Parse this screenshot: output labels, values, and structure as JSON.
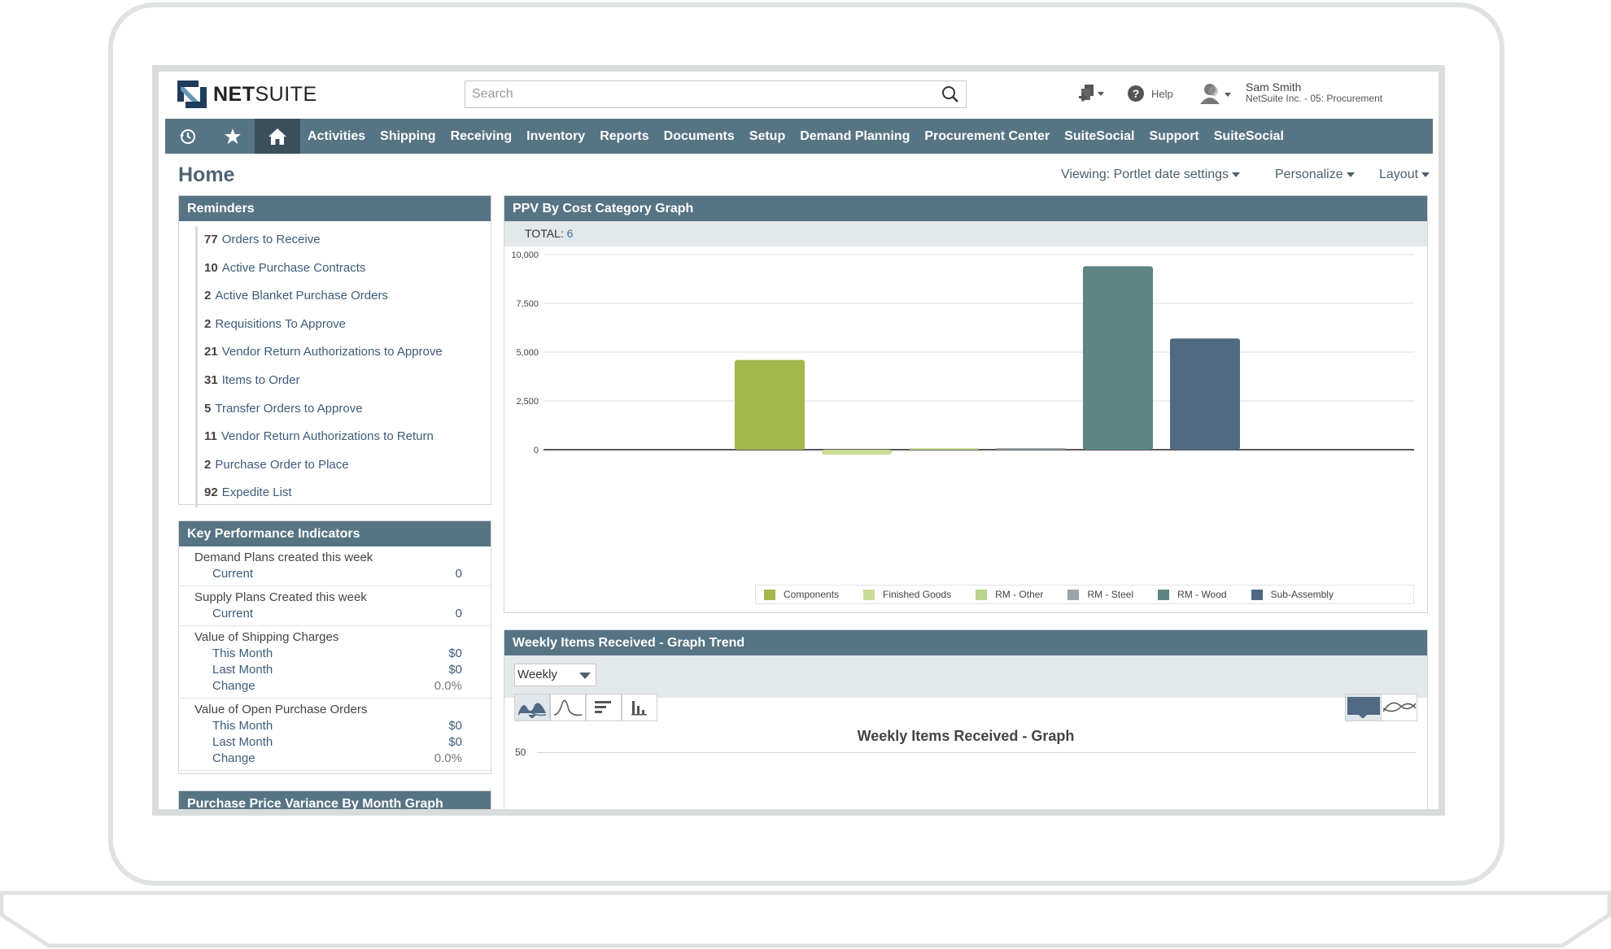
{
  "header": {
    "logo_text_bold": "NET",
    "logo_text_light": "SUITE",
    "search_placeholder": "Search",
    "help_label": "Help",
    "user_name": "Sam Smith",
    "user_role": "NetSuite Inc. - 05: Procurement"
  },
  "nav": {
    "items": [
      "Activities",
      "Shipping",
      "Receiving",
      "Inventory",
      "Reports",
      "Documents",
      "Setup",
      "Demand Planning",
      "Procurement Center",
      "SuiteSocial",
      "Support",
      "SuiteSocial"
    ]
  },
  "page": {
    "title": "Home",
    "viewing": "Viewing: Portlet date settings",
    "personalize": "Personalize",
    "layout": "Layout"
  },
  "reminders": {
    "title": "Reminders",
    "items": [
      {
        "count": "77",
        "label": "Orders to Receive"
      },
      {
        "count": "10",
        "label": "Active Purchase Contracts"
      },
      {
        "count": "2",
        "label": "Active Blanket Purchase Orders"
      },
      {
        "count": "2",
        "label": "Requisitions To Approve"
      },
      {
        "count": "21",
        "label": "Vendor Return Authorizations to Approve"
      },
      {
        "count": "31",
        "label": "Items to Order"
      },
      {
        "count": "5",
        "label": "Transfer Orders to Approve"
      },
      {
        "count": "11",
        "label": "Vendor Return Authorizations to Return"
      },
      {
        "count": "2",
        "label": "Purchase Order to Place"
      },
      {
        "count": "92",
        "label": "Expedite List"
      }
    ]
  },
  "kpi": {
    "title": "Key Performance Indicators",
    "groups": [
      {
        "title": "Demand Plans created this week",
        "rows": [
          {
            "label": "Current",
            "value": "0"
          }
        ]
      },
      {
        "title": "Supply Plans Created this week",
        "rows": [
          {
            "label": "Current",
            "value": "0"
          }
        ]
      },
      {
        "title": "Value of Shipping Charges",
        "rows": [
          {
            "label": "This Month",
            "value": "$0"
          },
          {
            "label": "Last Month",
            "value": "$0"
          },
          {
            "label": "Change",
            "value": "0.0%"
          }
        ]
      },
      {
        "title": "Value of Open Purchase Orders",
        "rows": [
          {
            "label": "This Month",
            "value": "$0"
          },
          {
            "label": "Last Month",
            "value": "$0"
          },
          {
            "label": "Change",
            "value": "0.0%"
          }
        ]
      }
    ]
  },
  "ppv_month": {
    "title": "Purchase Price Variance By Month Graph"
  },
  "ppv_graph": {
    "title": "PPV By Cost Category Graph",
    "total_label": "TOTAL:",
    "total_value": "6"
  },
  "chart_data": {
    "type": "bar",
    "categories": [
      "Components",
      "Finished Goods",
      "RM - Other",
      "RM - Steel",
      "RM - Wood",
      "Sub-Assembly"
    ],
    "values": [
      4600,
      -250,
      50,
      50,
      9400,
      5700
    ],
    "colors": [
      "#a3b74d",
      "#c9dc96",
      "#c9dc96",
      "#9ba5aa",
      "#5f8583",
      "#4f6a82"
    ],
    "legend_colors": [
      "#a3b74d",
      "#c9dc96",
      "#b9d48f",
      "#9ba5aa",
      "#5f8583",
      "#4f6a82"
    ],
    "yticks": [
      "10,000",
      "7,500",
      "5,000",
      "2,500",
      "0"
    ],
    "ylim": [
      0,
      10000
    ],
    "legend_position": "bottom",
    "grid": true
  },
  "weekly": {
    "title": "Weekly Items Received - Graph Trend",
    "select_value": "Weekly",
    "graph_title": "Weekly Items Received - Graph",
    "y_tick_top": "50"
  },
  "colors": {
    "nav_bg": "#577484",
    "nav_active": "#3a4f5b",
    "portlet_header": "#577484",
    "link": "#3e5c79"
  }
}
